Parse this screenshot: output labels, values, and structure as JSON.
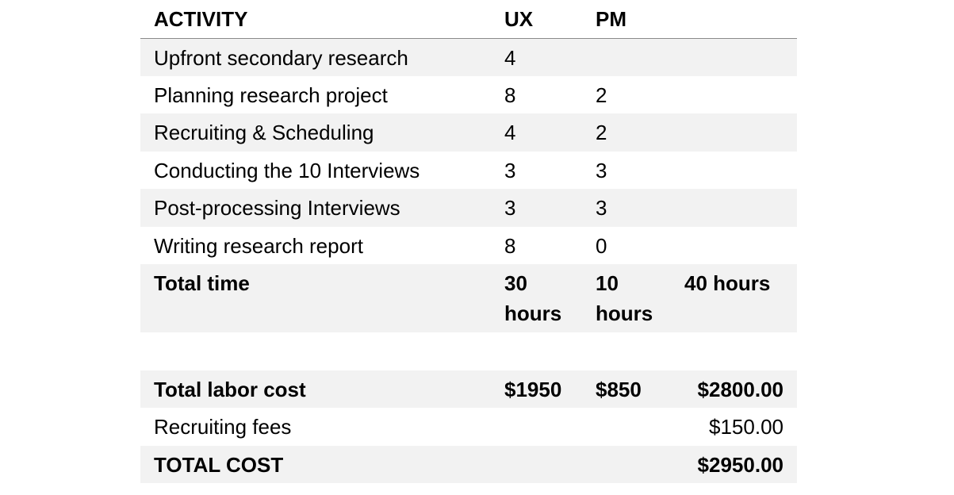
{
  "header": {
    "activity": "ACTIVITY",
    "ux": "UX",
    "pm": "PM",
    "total": ""
  },
  "rows": [
    {
      "activity": "Upfront secondary research",
      "ux": "4",
      "pm": "",
      "total": ""
    },
    {
      "activity": "Planning research project",
      "ux": "8",
      "pm": "2",
      "total": ""
    },
    {
      "activity": "Recruiting & Scheduling",
      "ux": "4",
      "pm": "2",
      "total": ""
    },
    {
      "activity": "Conducting the 10 Interviews",
      "ux": "3",
      "pm": "3",
      "total": ""
    },
    {
      "activity": "Post-processing Interviews",
      "ux": "3",
      "pm": "3",
      "total": ""
    },
    {
      "activity": "Writing research report",
      "ux": "8",
      "pm": "0",
      "total": ""
    }
  ],
  "total_time": {
    "label": "Total time",
    "ux": "30 hours",
    "pm": "10 hours",
    "total": "40 hours"
  },
  "labor_cost": {
    "label": "Total labor cost",
    "ux": "$1950",
    "pm": "$850",
    "total": "$2800.00"
  },
  "recruiting_fees": {
    "label": "Recruiting fees",
    "total": "$150.00"
  },
  "total_cost": {
    "label": "TOTAL COST",
    "total": "$2950.00"
  }
}
